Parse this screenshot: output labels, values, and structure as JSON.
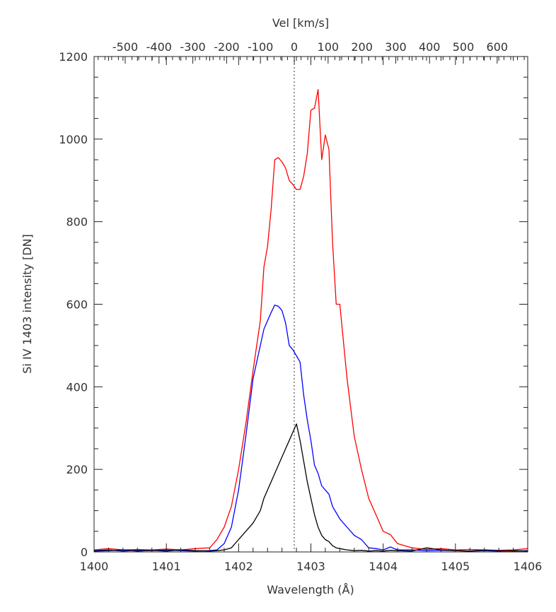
{
  "chart_data": {
    "type": "line",
    "title": "",
    "xlabel": "Wavelength (Å)",
    "ylabel": "Si IV 1403 intensity [DN]",
    "x2label": "Vel [km/s]",
    "xlim": [
      1400,
      1406
    ],
    "ylim": [
      0,
      1200
    ],
    "x_ticks": [
      1400,
      1401,
      1402,
      1403,
      1404,
      1405,
      1406
    ],
    "y_ticks": [
      0,
      200,
      400,
      600,
      800,
      1000,
      1200
    ],
    "x2_ticks": [
      -500,
      -400,
      -300,
      -200,
      -100,
      0,
      100,
      200,
      300,
      400,
      500,
      600
    ],
    "reference_wavelength": 1402.77,
    "velocity_ref_wavelength": 1402.77,
    "grid": false,
    "legend": "none",
    "series": [
      {
        "color": "#ff0000",
        "x": [
          1400.0,
          1400.2,
          1400.4,
          1400.6,
          1400.8,
          1401.0,
          1401.2,
          1401.4,
          1401.6,
          1401.7,
          1401.8,
          1401.9,
          1402.0,
          1402.1,
          1402.2,
          1402.3,
          1402.35,
          1402.4,
          1402.45,
          1402.5,
          1402.55,
          1402.6,
          1402.65,
          1402.7,
          1402.75,
          1402.8,
          1402.85,
          1402.9,
          1402.95,
          1403.0,
          1403.05,
          1403.1,
          1403.15,
          1403.2,
          1403.25,
          1403.3,
          1403.35,
          1403.4,
          1403.5,
          1403.6,
          1403.7,
          1403.8,
          1403.9,
          1404.0,
          1404.1,
          1404.2,
          1404.4,
          1404.6,
          1404.8,
          1405.0,
          1405.2,
          1405.4,
          1405.6,
          1405.8,
          1406.0
        ],
        "y": [
          5,
          8,
          5,
          6,
          5,
          7,
          5,
          8,
          10,
          30,
          60,
          110,
          200,
          310,
          440,
          560,
          690,
          740,
          830,
          950,
          955,
          945,
          930,
          900,
          890,
          878,
          878,
          910,
          965,
          1070,
          1075,
          1120,
          950,
          1010,
          975,
          750,
          600,
          600,
          420,
          280,
          200,
          130,
          90,
          50,
          42,
          20,
          10,
          6,
          8,
          5,
          6,
          5,
          4,
          5,
          8
        ]
      },
      {
        "color": "#0000ff",
        "x": [
          1400.0,
          1400.2,
          1400.4,
          1400.6,
          1400.8,
          1401.0,
          1401.2,
          1401.4,
          1401.6,
          1401.7,
          1401.8,
          1401.9,
          1402.0,
          1402.1,
          1402.2,
          1402.3,
          1402.35,
          1402.4,
          1402.45,
          1402.5,
          1402.55,
          1402.6,
          1402.65,
          1402.7,
          1402.75,
          1402.8,
          1402.85,
          1402.9,
          1402.95,
          1403.0,
          1403.05,
          1403.1,
          1403.15,
          1403.2,
          1403.25,
          1403.3,
          1403.35,
          1403.4,
          1403.5,
          1403.6,
          1403.7,
          1403.8,
          1403.9,
          1404.0,
          1404.1,
          1404.2,
          1404.4,
          1404.6,
          1404.8,
          1405.0,
          1405.2,
          1405.4,
          1405.6,
          1405.8,
          1406.0
        ],
        "y": [
          3,
          5,
          2,
          4,
          3,
          5,
          3,
          2,
          3,
          5,
          20,
          60,
          150,
          280,
          420,
          500,
          540,
          560,
          580,
          598,
          595,
          585,
          555,
          500,
          490,
          475,
          460,
          380,
          320,
          270,
          210,
          190,
          160,
          150,
          140,
          110,
          95,
          80,
          60,
          40,
          30,
          10,
          8,
          5,
          12,
          5,
          5,
          3,
          4,
          3,
          2,
          5,
          3,
          2,
          3
        ]
      },
      {
        "color": "#000000",
        "x": [
          1400.0,
          1400.2,
          1400.4,
          1400.6,
          1400.8,
          1401.0,
          1401.2,
          1401.4,
          1401.6,
          1401.7,
          1401.8,
          1401.9,
          1402.0,
          1402.1,
          1402.2,
          1402.3,
          1402.35,
          1402.4,
          1402.45,
          1402.5,
          1402.55,
          1402.6,
          1402.65,
          1402.7,
          1402.75,
          1402.8,
          1402.85,
          1402.9,
          1402.95,
          1403.0,
          1403.05,
          1403.1,
          1403.15,
          1403.2,
          1403.25,
          1403.3,
          1403.35,
          1403.4,
          1403.5,
          1403.6,
          1403.7,
          1403.8,
          1403.9,
          1404.0,
          1404.1,
          1404.2,
          1404.4,
          1404.6,
          1404.8,
          1405.0,
          1405.2,
          1405.4,
          1405.6,
          1405.8,
          1406.0
        ],
        "y": [
          2,
          3,
          5,
          2,
          4,
          2,
          5,
          3,
          2,
          3,
          5,
          10,
          30,
          50,
          70,
          100,
          130,
          150,
          170,
          190,
          210,
          230,
          250,
          270,
          290,
          310,
          270,
          220,
          170,
          130,
          90,
          60,
          40,
          30,
          25,
          15,
          10,
          8,
          5,
          3,
          4,
          2,
          3,
          2,
          4,
          3,
          2,
          10,
          5,
          3,
          2,
          3,
          2,
          3,
          2
        ]
      }
    ]
  }
}
